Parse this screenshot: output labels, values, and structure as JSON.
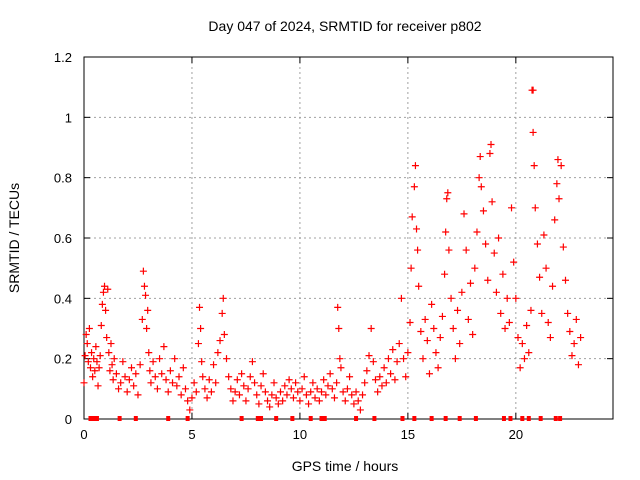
{
  "chart_data": {
    "type": "scatter",
    "title": "Day 047 of 2024, SRMTID for receiver p802",
    "xlabel": "GPS time / hours",
    "ylabel": "SRMTID / TECUs",
    "xlim": [
      0,
      24.5
    ],
    "ylim": [
      0,
      1.2
    ],
    "xticks": [
      "0",
      "5",
      "10",
      "15",
      "20"
    ],
    "yticks": [
      "0",
      "0.2",
      "0.4",
      "0.6",
      "0.8",
      "1",
      "1.2"
    ],
    "xtick_values": [
      0,
      5,
      10,
      15,
      20
    ],
    "ytick_values": [
      0,
      0.2,
      0.4,
      0.6,
      0.8,
      1.0,
      1.2
    ],
    "grid": true,
    "marker": "plus",
    "series": [
      {
        "name": "SRMTID",
        "color": "#ff0000",
        "points": [
          [
            0.0,
            0.12
          ],
          [
            0.05,
            0.21
          ],
          [
            0.1,
            0.28
          ],
          [
            0.15,
            0.25
          ],
          [
            0.2,
            0.19
          ],
          [
            0.25,
            0.3
          ],
          [
            0.3,
            0.17
          ],
          [
            0.35,
            0.22
          ],
          [
            0.4,
            0.14
          ],
          [
            0.45,
            0.2
          ],
          [
            0.5,
            0.16
          ],
          [
            0.55,
            0.24
          ],
          [
            0.6,
            0.19
          ],
          [
            0.65,
            0.11
          ],
          [
            0.7,
            0.17
          ],
          [
            0.75,
            0.21
          ],
          [
            0.8,
            0.31
          ],
          [
            0.85,
            0.38
          ],
          [
            0.9,
            0.42
          ],
          [
            0.95,
            0.44
          ],
          [
            1.0,
            0.36
          ],
          [
            1.05,
            0.27
          ],
          [
            1.1,
            0.43
          ],
          [
            1.15,
            0.22
          ],
          [
            1.2,
            0.16
          ],
          [
            1.25,
            0.25
          ],
          [
            1.3,
            0.18
          ],
          [
            1.35,
            0.13
          ],
          [
            1.4,
            0.2
          ],
          [
            1.5,
            0.15
          ],
          [
            1.6,
            0.1
          ],
          [
            1.7,
            0.12
          ],
          [
            1.8,
            0.19
          ],
          [
            1.9,
            0.14
          ],
          [
            2.0,
            0.09
          ],
          [
            2.1,
            0.13
          ],
          [
            2.2,
            0.17
          ],
          [
            2.3,
            0.11
          ],
          [
            2.4,
            0.15
          ],
          [
            2.5,
            0.08
          ],
          [
            2.6,
            0.18
          ],
          [
            2.7,
            0.33
          ],
          [
            2.75,
            0.49
          ],
          [
            2.8,
            0.44
          ],
          [
            2.85,
            0.41
          ],
          [
            2.9,
            0.3
          ],
          [
            2.95,
            0.36
          ],
          [
            3.0,
            0.22
          ],
          [
            3.05,
            0.16
          ],
          [
            3.1,
            0.12
          ],
          [
            3.2,
            0.19
          ],
          [
            3.3,
            0.14
          ],
          [
            3.4,
            0.1
          ],
          [
            3.5,
            0.2
          ],
          [
            3.6,
            0.15
          ],
          [
            3.7,
            0.24
          ],
          [
            3.8,
            0.13
          ],
          [
            3.9,
            0.09
          ],
          [
            4.0,
            0.16
          ],
          [
            4.1,
            0.12
          ],
          [
            4.2,
            0.2
          ],
          [
            4.3,
            0.11
          ],
          [
            4.4,
            0.14
          ],
          [
            4.5,
            0.08
          ],
          [
            4.6,
            0.17
          ],
          [
            4.7,
            0.1
          ],
          [
            4.8,
            0.06
          ],
          [
            4.9,
            0.03
          ],
          [
            5.0,
            0.07
          ],
          [
            5.1,
            0.12
          ],
          [
            5.2,
            0.09
          ],
          [
            5.3,
            0.25
          ],
          [
            5.35,
            0.37
          ],
          [
            5.4,
            0.3
          ],
          [
            5.45,
            0.19
          ],
          [
            5.5,
            0.14
          ],
          [
            5.6,
            0.1
          ],
          [
            5.7,
            0.07
          ],
          [
            5.8,
            0.13
          ],
          [
            5.9,
            0.09
          ],
          [
            6.0,
            0.18
          ],
          [
            6.1,
            0.12
          ],
          [
            6.2,
            0.22
          ],
          [
            6.3,
            0.26
          ],
          [
            6.4,
            0.35
          ],
          [
            6.45,
            0.4
          ],
          [
            6.5,
            0.28
          ],
          [
            6.6,
            0.2
          ],
          [
            6.7,
            0.14
          ],
          [
            6.8,
            0.1
          ],
          [
            6.9,
            0.06
          ],
          [
            7.0,
            0.09
          ],
          [
            7.1,
            0.13
          ],
          [
            7.2,
            0.08
          ],
          [
            7.3,
            0.15
          ],
          [
            7.4,
            0.11
          ],
          [
            7.5,
            0.06
          ],
          [
            7.6,
            0.1
          ],
          [
            7.7,
            0.14
          ],
          [
            7.8,
            0.19
          ],
          [
            7.9,
            0.12
          ],
          [
            8.0,
            0.08
          ],
          [
            8.1,
            0.05
          ],
          [
            8.2,
            0.11
          ],
          [
            8.3,
            0.15
          ],
          [
            8.4,
            0.09
          ],
          [
            8.5,
            0.06
          ],
          [
            8.6,
            0.04
          ],
          [
            8.7,
            0.08
          ],
          [
            8.8,
            0.12
          ],
          [
            8.9,
            0.07
          ],
          [
            9.0,
            0.05
          ],
          [
            9.1,
            0.09
          ],
          [
            9.2,
            0.06
          ],
          [
            9.3,
            0.11
          ],
          [
            9.4,
            0.08
          ],
          [
            9.5,
            0.13
          ],
          [
            9.6,
            0.1
          ],
          [
            9.7,
            0.07
          ],
          [
            9.8,
            0.12
          ],
          [
            9.9,
            0.09
          ],
          [
            10.0,
            0.06
          ],
          [
            10.1,
            0.1
          ],
          [
            10.2,
            0.14
          ],
          [
            10.3,
            0.08
          ],
          [
            10.4,
            0.05
          ],
          [
            10.5,
            0.09
          ],
          [
            10.6,
            0.12
          ],
          [
            10.7,
            0.07
          ],
          [
            10.8,
            0.1
          ],
          [
            10.9,
            0.06
          ],
          [
            11.0,
            0.09
          ],
          [
            11.1,
            0.13
          ],
          [
            11.2,
            0.08
          ],
          [
            11.3,
            0.11
          ],
          [
            11.4,
            0.15
          ],
          [
            11.5,
            0.1
          ],
          [
            11.6,
            0.07
          ],
          [
            11.7,
            0.12
          ],
          [
            11.75,
            0.37
          ],
          [
            11.8,
            0.3
          ],
          [
            11.85,
            0.2
          ],
          [
            11.9,
            0.17
          ],
          [
            12.0,
            0.09
          ],
          [
            12.1,
            0.06
          ],
          [
            12.2,
            0.1
          ],
          [
            12.3,
            0.14
          ],
          [
            12.4,
            0.08
          ],
          [
            12.5,
            0.05
          ],
          [
            12.6,
            0.09
          ],
          [
            12.7,
            0.06
          ],
          [
            12.8,
            0.03
          ],
          [
            12.9,
            0.08
          ],
          [
            13.0,
            0.12
          ],
          [
            13.1,
            0.16
          ],
          [
            13.2,
            0.21
          ],
          [
            13.3,
            0.3
          ],
          [
            13.4,
            0.19
          ],
          [
            13.5,
            0.13
          ],
          [
            13.6,
            0.09
          ],
          [
            13.7,
            0.14
          ],
          [
            13.8,
            0.11
          ],
          [
            13.9,
            0.17
          ],
          [
            14.0,
            0.12
          ],
          [
            14.1,
            0.2
          ],
          [
            14.2,
            0.15
          ],
          [
            14.3,
            0.23
          ],
          [
            14.4,
            0.13
          ],
          [
            14.5,
            0.19
          ],
          [
            14.6,
            0.25
          ],
          [
            14.7,
            0.4
          ],
          [
            14.8,
            0.2
          ],
          [
            14.9,
            0.14
          ],
          [
            15.0,
            0.22
          ],
          [
            15.1,
            0.32
          ],
          [
            15.15,
            0.5
          ],
          [
            15.2,
            0.67
          ],
          [
            15.3,
            0.77
          ],
          [
            15.35,
            0.84
          ],
          [
            15.4,
            0.63
          ],
          [
            15.45,
            0.56
          ],
          [
            15.5,
            0.44
          ],
          [
            15.6,
            0.29
          ],
          [
            15.7,
            0.2
          ],
          [
            15.8,
            0.33
          ],
          [
            15.9,
            0.26
          ],
          [
            16.0,
            0.15
          ],
          [
            16.1,
            0.38
          ],
          [
            16.2,
            0.3
          ],
          [
            16.3,
            0.22
          ],
          [
            16.4,
            0.17
          ],
          [
            16.5,
            0.27
          ],
          [
            16.6,
            0.34
          ],
          [
            16.7,
            0.48
          ],
          [
            16.75,
            0.62
          ],
          [
            16.8,
            0.73
          ],
          [
            16.85,
            0.75
          ],
          [
            16.9,
            0.56
          ],
          [
            17.0,
            0.4
          ],
          [
            17.1,
            0.3
          ],
          [
            17.2,
            0.2
          ],
          [
            17.3,
            0.36
          ],
          [
            17.4,
            0.25
          ],
          [
            17.5,
            0.42
          ],
          [
            17.6,
            0.68
          ],
          [
            17.7,
            0.56
          ],
          [
            17.8,
            0.33
          ],
          [
            17.9,
            0.45
          ],
          [
            18.0,
            0.28
          ],
          [
            18.1,
            0.5
          ],
          [
            18.2,
            0.62
          ],
          [
            18.3,
            0.8
          ],
          [
            18.35,
            0.87
          ],
          [
            18.4,
            0.77
          ],
          [
            18.5,
            0.69
          ],
          [
            18.6,
            0.58
          ],
          [
            18.7,
            0.46
          ],
          [
            18.8,
            0.88
          ],
          [
            18.85,
            0.91
          ],
          [
            18.9,
            0.72
          ],
          [
            19.0,
            0.55
          ],
          [
            19.1,
            0.42
          ],
          [
            19.2,
            0.6
          ],
          [
            19.3,
            0.35
          ],
          [
            19.4,
            0.48
          ],
          [
            19.5,
            0.3
          ],
          [
            19.6,
            0.4
          ],
          [
            19.7,
            0.32
          ],
          [
            19.8,
            0.7
          ],
          [
            19.9,
            0.52
          ],
          [
            20.0,
            0.4
          ],
          [
            20.1,
            0.27
          ],
          [
            20.2,
            0.17
          ],
          [
            20.3,
            0.25
          ],
          [
            20.4,
            0.2
          ],
          [
            20.5,
            0.31
          ],
          [
            20.6,
            0.22
          ],
          [
            20.7,
            0.36
          ],
          [
            20.75,
            1.09
          ],
          [
            20.8,
            1.09
          ],
          [
            20.8,
            0.95
          ],
          [
            20.85,
            0.84
          ],
          [
            20.9,
            0.7
          ],
          [
            21.0,
            0.58
          ],
          [
            21.1,
            0.47
          ],
          [
            21.2,
            0.35
          ],
          [
            21.3,
            0.61
          ],
          [
            21.4,
            0.5
          ],
          [
            21.5,
            0.32
          ],
          [
            21.6,
            0.27
          ],
          [
            21.7,
            0.44
          ],
          [
            21.8,
            0.66
          ],
          [
            21.9,
            0.78
          ],
          [
            21.95,
            0.86
          ],
          [
            22.0,
            0.73
          ],
          [
            22.1,
            0.84
          ],
          [
            22.2,
            0.57
          ],
          [
            22.3,
            0.46
          ],
          [
            22.4,
            0.35
          ],
          [
            22.5,
            0.29
          ],
          [
            22.6,
            0.21
          ],
          [
            22.7,
            0.25
          ],
          [
            22.8,
            0.33
          ],
          [
            22.9,
            0.18
          ],
          [
            23.0,
            0.27
          ]
        ]
      }
    ],
    "gap_markers_x": [
      0.3,
      0.45,
      0.6,
      1.65,
      2.4,
      3.9,
      4.8,
      7.3,
      8.05,
      8.2,
      8.9,
      9.65,
      10.5,
      11.0,
      11.15,
      12.6,
      13.45,
      14.75,
      15.3,
      16.1,
      16.75,
      17.4,
      18.15,
      19.45,
      19.75,
      20.3,
      20.6,
      21.15,
      21.85,
      22.05
    ]
  }
}
